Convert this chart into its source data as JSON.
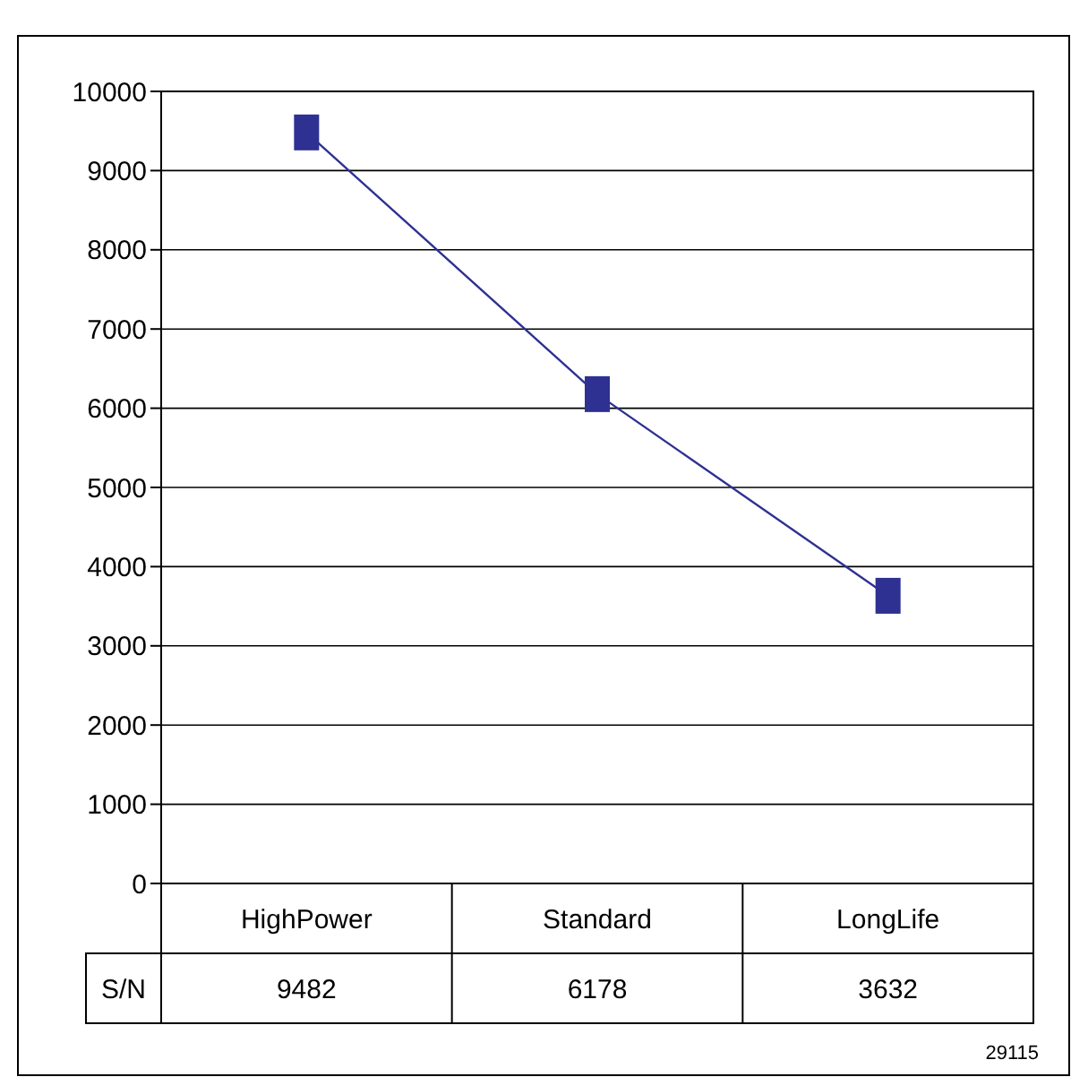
{
  "chart_data": {
    "type": "line",
    "categories": [
      "HighPower",
      "Standard",
      "LongLife"
    ],
    "series": [
      {
        "name": "S/N",
        "color": "#2e3192",
        "values": [
          9482,
          6178,
          3632
        ]
      }
    ],
    "ylim": [
      0,
      10000
    ],
    "yticks": [
      0,
      1000,
      2000,
      3000,
      4000,
      5000,
      6000,
      7000,
      8000,
      9000,
      10000
    ],
    "grid": "y",
    "marker": "square",
    "line_style": "solid",
    "data_labels": true,
    "annotations": [
      "29115"
    ]
  }
}
